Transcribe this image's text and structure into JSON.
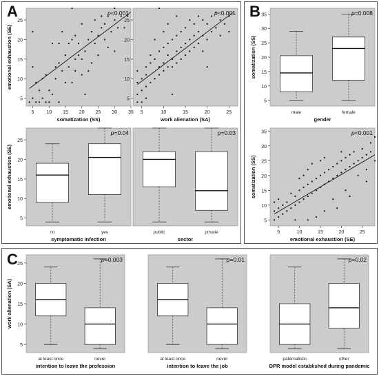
{
  "panel_labels": [
    "A",
    "B",
    "C"
  ],
  "chart_data": [
    {
      "type": "scatter",
      "panel": "A",
      "title": "",
      "annotation": "p<0.001",
      "xlabel": "somatization (SS)",
      "ylabel": "emotional exhaustion (SE)",
      "xlim": [
        3,
        35
      ],
      "ylim": [
        3,
        28
      ],
      "xticks": [
        5,
        10,
        15,
        20,
        25,
        30,
        35
      ],
      "yticks": [
        5,
        10,
        15,
        20,
        25
      ],
      "trend": [
        [
          4,
          7.5
        ],
        [
          35,
          27
        ]
      ],
      "points": [
        [
          4,
          4
        ],
        [
          5,
          5
        ],
        [
          6,
          4
        ],
        [
          7,
          4
        ],
        [
          8,
          5
        ],
        [
          9,
          4
        ],
        [
          10,
          4
        ],
        [
          5,
          13
        ],
        [
          5,
          22
        ],
        [
          6,
          9
        ],
        [
          7,
          7
        ],
        [
          8,
          10
        ],
        [
          9,
          11
        ],
        [
          10,
          7
        ],
        [
          11,
          19
        ],
        [
          12,
          10
        ],
        [
          12,
          13
        ],
        [
          13,
          14
        ],
        [
          13,
          19
        ],
        [
          14,
          22
        ],
        [
          14,
          12
        ],
        [
          15,
          9
        ],
        [
          15,
          16
        ],
        [
          16,
          13
        ],
        [
          16,
          19
        ],
        [
          17,
          20
        ],
        [
          17,
          28
        ],
        [
          18,
          15
        ],
        [
          18,
          21
        ],
        [
          19,
          16
        ],
        [
          19,
          19
        ],
        [
          20,
          11
        ],
        [
          20,
          24
        ],
        [
          21,
          17
        ],
        [
          22,
          20
        ],
        [
          22,
          12
        ],
        [
          23,
          22
        ],
        [
          23,
          14
        ],
        [
          24,
          19
        ],
        [
          24,
          25
        ],
        [
          25,
          21
        ],
        [
          25,
          16
        ],
        [
          26,
          23
        ],
        [
          26,
          26
        ],
        [
          27,
          20
        ],
        [
          27,
          24
        ],
        [
          28,
          18
        ],
        [
          28,
          26
        ],
        [
          29,
          22
        ],
        [
          30,
          17
        ],
        [
          30,
          25
        ],
        [
          31,
          23
        ],
        [
          32,
          26
        ],
        [
          33,
          23
        ],
        [
          34,
          26
        ],
        [
          21,
          6
        ],
        [
          17,
          9
        ],
        [
          13,
          4
        ],
        [
          11,
          6
        ],
        [
          18,
          12
        ],
        [
          20,
          15
        ],
        [
          26,
          26
        ],
        [
          30,
          28
        ]
      ]
    },
    {
      "type": "scatter",
      "panel": "A",
      "title": "",
      "annotation": "p<0.001",
      "xlabel": "work alienation (SA)",
      "ylabel": "",
      "xlim": [
        3,
        27
      ],
      "ylim": [
        3,
        28
      ],
      "xticks": [
        5,
        10,
        15,
        20,
        25
      ],
      "yticks": [
        5,
        10,
        15,
        20,
        25
      ],
      "trend": [
        [
          4,
          8.5
        ],
        [
          26,
          27
        ]
      ],
      "points": [
        [
          4,
          4
        ],
        [
          4,
          6
        ],
        [
          4,
          9
        ],
        [
          4,
          12
        ],
        [
          5,
          4
        ],
        [
          5,
          7
        ],
        [
          5,
          10
        ],
        [
          6,
          8
        ],
        [
          6,
          11
        ],
        [
          6,
          13
        ],
        [
          7,
          9
        ],
        [
          7,
          14
        ],
        [
          7,
          16
        ],
        [
          8,
          10
        ],
        [
          8,
          15
        ],
        [
          8,
          20
        ],
        [
          9,
          11
        ],
        [
          9,
          13
        ],
        [
          9,
          17
        ],
        [
          10,
          12
        ],
        [
          10,
          14
        ],
        [
          10,
          18
        ],
        [
          10,
          22
        ],
        [
          11,
          13
        ],
        [
          11,
          16
        ],
        [
          11,
          19
        ],
        [
          11,
          24
        ],
        [
          12,
          13
        ],
        [
          12,
          15
        ],
        [
          12,
          20
        ],
        [
          13,
          14
        ],
        [
          13,
          17
        ],
        [
          13,
          21
        ],
        [
          13,
          26
        ],
        [
          14,
          15
        ],
        [
          14,
          18
        ],
        [
          14,
          22
        ],
        [
          15,
          16
        ],
        [
          15,
          19
        ],
        [
          15,
          23
        ],
        [
          16,
          17
        ],
        [
          16,
          20
        ],
        [
          16,
          25
        ],
        [
          17,
          18
        ],
        [
          17,
          21
        ],
        [
          17,
          24
        ],
        [
          18,
          19
        ],
        [
          18,
          22
        ],
        [
          18,
          26
        ],
        [
          19,
          17
        ],
        [
          19,
          21
        ],
        [
          19,
          25
        ],
        [
          20,
          13
        ],
        [
          20,
          20
        ],
        [
          20,
          24
        ],
        [
          21,
          22
        ],
        [
          21,
          26
        ],
        [
          22,
          23
        ],
        [
          22,
          27
        ],
        [
          23,
          21
        ],
        [
          23,
          25
        ],
        [
          24,
          24
        ],
        [
          25,
          22
        ],
        [
          25,
          26
        ],
        [
          9,
          28
        ],
        [
          12,
          6
        ],
        [
          6,
          5
        ]
      ]
    },
    {
      "type": "box",
      "panel": "A",
      "title": "",
      "annotation": "p=0.04",
      "xlabel": "symptomatic infection",
      "ylabel": "emotional exhaustion (SE)",
      "ylim": [
        3,
        28
      ],
      "yticks": [
        5,
        10,
        15,
        20,
        25
      ],
      "categories": [
        "no",
        "yes"
      ],
      "boxes": [
        {
          "min": 4,
          "q1": 9,
          "median": 16,
          "q3": 19,
          "max": 24
        },
        {
          "min": 4,
          "q1": 11,
          "median": 20.5,
          "q3": 24,
          "max": 28
        }
      ]
    },
    {
      "type": "box",
      "panel": "A",
      "title": "",
      "annotation": "p=0.03",
      "xlabel": "sector",
      "ylabel": "",
      "ylim": [
        3,
        28
      ],
      "yticks": [],
      "categories": [
        "public",
        "private"
      ],
      "boxes": [
        {
          "min": 4,
          "q1": 13,
          "median": 20,
          "q3": 22,
          "max": 28
        },
        {
          "min": 4,
          "q1": 7,
          "median": 12,
          "q3": 22,
          "max": 28
        }
      ]
    },
    {
      "type": "box",
      "panel": "B",
      "title": "",
      "annotation": "p=0.008",
      "xlabel": "gender",
      "ylabel": "somatization (SS)",
      "ylim": [
        3,
        37
      ],
      "yticks": [
        5,
        10,
        15,
        20,
        25,
        30,
        35
      ],
      "categories": [
        "male",
        "female"
      ],
      "boxes": [
        {
          "min": 5,
          "q1": 8,
          "median": 14.5,
          "q3": 20.5,
          "max": 29
        },
        {
          "min": 5,
          "q1": 12,
          "median": 23,
          "q3": 27,
          "max": 35
        }
      ]
    },
    {
      "type": "scatter",
      "panel": "B",
      "title": "",
      "annotation": "p<0.001",
      "xlabel": "emotional exhaustion (SE)",
      "ylabel": "somatization (SS)",
      "xlim": [
        3,
        28
      ],
      "ylim": [
        3,
        36
      ],
      "xticks": [
        5,
        10,
        15,
        20,
        25
      ],
      "yticks": [
        5,
        10,
        15,
        20,
        25,
        30,
        35
      ],
      "trend": [
        [
          4,
          7
        ],
        [
          28,
          27
        ]
      ],
      "points": [
        [
          4,
          5
        ],
        [
          4,
          8
        ],
        [
          4,
          11
        ],
        [
          5,
          6
        ],
        [
          5,
          9
        ],
        [
          5,
          12
        ],
        [
          6,
          7
        ],
        [
          6,
          10
        ],
        [
          7,
          8
        ],
        [
          7,
          11
        ],
        [
          8,
          9
        ],
        [
          8,
          14
        ],
        [
          9,
          10
        ],
        [
          9,
          13
        ],
        [
          10,
          11
        ],
        [
          10,
          15
        ],
        [
          10,
          19
        ],
        [
          11,
          12
        ],
        [
          11,
          16
        ],
        [
          11,
          20
        ],
        [
          12,
          13
        ],
        [
          12,
          17
        ],
        [
          12,
          22
        ],
        [
          13,
          14
        ],
        [
          13,
          18
        ],
        [
          13,
          24
        ],
        [
          14,
          15
        ],
        [
          14,
          19
        ],
        [
          15,
          16
        ],
        [
          15,
          20
        ],
        [
          15,
          25
        ],
        [
          16,
          17
        ],
        [
          16,
          21
        ],
        [
          16,
          26
        ],
        [
          17,
          18
        ],
        [
          17,
          22
        ],
        [
          18,
          12
        ],
        [
          18,
          19
        ],
        [
          18,
          23
        ],
        [
          19,
          20
        ],
        [
          19,
          24
        ],
        [
          20,
          21
        ],
        [
          20,
          25
        ],
        [
          20,
          28
        ],
        [
          21,
          15
        ],
        [
          21,
          22
        ],
        [
          21,
          26
        ],
        [
          22,
          23
        ],
        [
          22,
          27
        ],
        [
          23,
          24
        ],
        [
          23,
          28
        ],
        [
          24,
          20
        ],
        [
          24,
          25
        ],
        [
          25,
          26
        ],
        [
          25,
          29
        ],
        [
          26,
          22
        ],
        [
          26,
          27
        ],
        [
          27,
          28
        ],
        [
          27,
          31
        ],
        [
          28,
          25
        ],
        [
          28,
          33
        ],
        [
          9,
          5
        ],
        [
          14,
          6
        ],
        [
          19,
          9
        ],
        [
          22,
          13
        ],
        [
          26,
          18
        ],
        [
          12,
          5
        ],
        [
          16,
          8
        ]
      ]
    },
    {
      "type": "box",
      "panel": "C",
      "title": "",
      "annotation": "p=0.003",
      "xlabel": "intention to leave the profession",
      "ylabel": "work alienation (SA)",
      "ylim": [
        3,
        27
      ],
      "yticks": [
        5,
        10,
        15,
        20,
        25
      ],
      "categories": [
        "at least once",
        "never"
      ],
      "boxes": [
        {
          "min": 5,
          "q1": 12,
          "median": 16,
          "q3": 20,
          "max": 24
        },
        {
          "min": 4,
          "q1": 5,
          "median": 10,
          "q3": 14,
          "max": 26
        }
      ]
    },
    {
      "type": "box",
      "panel": "C",
      "title": "",
      "annotation": "p=0.01",
      "xlabel": "intention to leave the job",
      "ylabel": "",
      "ylim": [
        3,
        27
      ],
      "yticks": [],
      "categories": [
        "at least once",
        "never"
      ],
      "boxes": [
        {
          "min": 5,
          "q1": 12,
          "median": 16,
          "q3": 20,
          "max": 24
        },
        {
          "min": 4,
          "q1": 5,
          "median": 10,
          "q3": 14,
          "max": 26
        }
      ]
    },
    {
      "type": "box",
      "panel": "C",
      "title": "",
      "annotation": "p=0.02",
      "xlabel": "DPR model established during pandemic",
      "ylabel": "",
      "ylim": [
        3,
        27
      ],
      "yticks": [],
      "categories": [
        "paternalistic",
        "other"
      ],
      "boxes": [
        {
          "min": 4,
          "q1": 5,
          "median": 10,
          "q3": 15,
          "max": 24
        },
        {
          "min": 4,
          "q1": 9,
          "median": 14,
          "q3": 20,
          "max": 26
        }
      ]
    }
  ]
}
